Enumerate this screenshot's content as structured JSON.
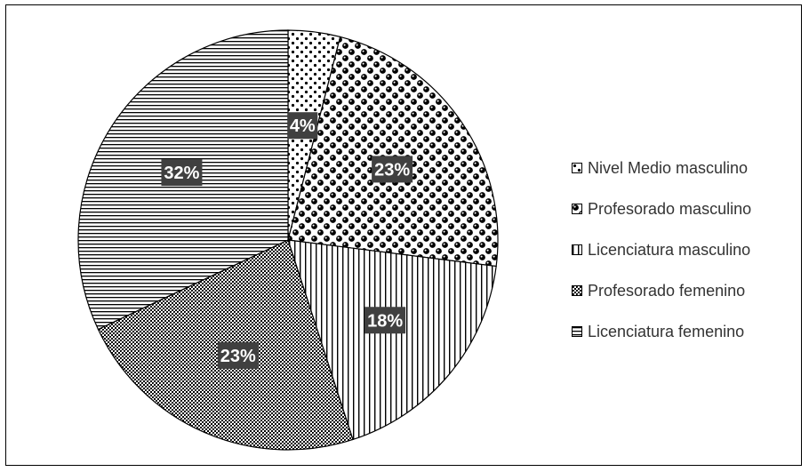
{
  "chart_data": {
    "type": "pie",
    "categories": [
      "Nivel Medio masculino",
      "Profesorado masculino",
      "Licenciatura masculino",
      "Profesorado femenino",
      "Licenciatura femenino"
    ],
    "values": [
      4,
      23,
      18,
      23,
      32
    ],
    "data_labels": [
      "4%",
      "23%",
      "18%",
      "23%",
      "32%"
    ],
    "patterns": [
      "dots-sparse",
      "checker-balls",
      "vertical-lines",
      "dots-dense",
      "horizontal-lines"
    ],
    "legend_placement": "right",
    "title": "",
    "colors": {
      "ink": "#000000",
      "label_background": "#404040",
      "label_text": "#ffffff"
    }
  }
}
